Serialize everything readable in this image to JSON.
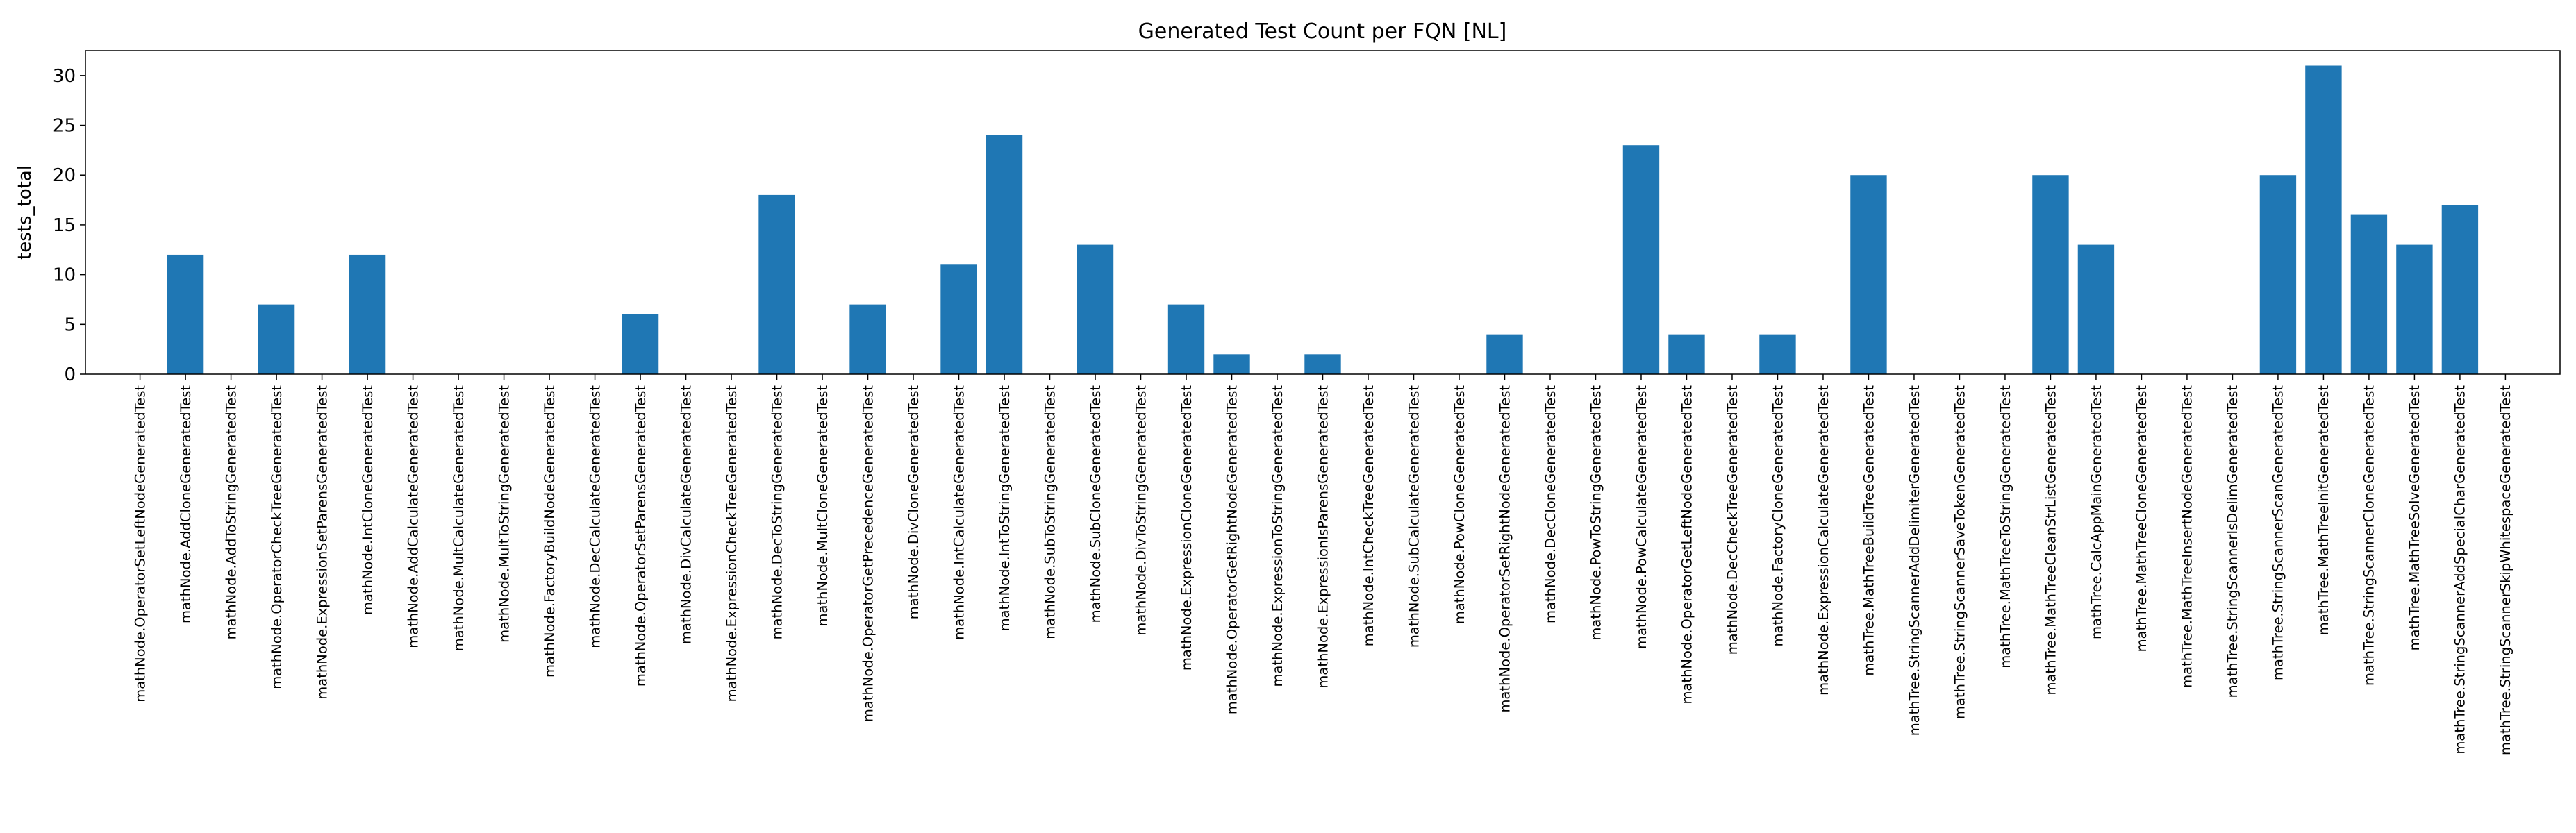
{
  "chart_data": {
    "type": "bar",
    "title": "Generated Test Count per FQN [NL]",
    "xlabel": "",
    "ylabel": "tests_total",
    "ylim": [
      0,
      32.5
    ],
    "yticks": [
      0,
      5,
      10,
      15,
      20,
      25,
      30
    ],
    "grid": false,
    "bar_color": "#1f77b4",
    "categories": [
      "mathNode.OperatorSetLeftNodeGeneratedTest",
      "mathNode.AddCloneGeneratedTest",
      "mathNode.AddToStringGeneratedTest",
      "mathNode.OperatorCheckTreeGeneratedTest",
      "mathNode.ExpressionSetParensGeneratedTest",
      "mathNode.IntCloneGeneratedTest",
      "mathNode.AddCalculateGeneratedTest",
      "mathNode.MultCalculateGeneratedTest",
      "mathNode.MultToStringGeneratedTest",
      "mathNode.FactoryBuildNodeGeneratedTest",
      "mathNode.DecCalculateGeneratedTest",
      "mathNode.OperatorSetParensGeneratedTest",
      "mathNode.DivCalculateGeneratedTest",
      "mathNode.ExpressionCheckTreeGeneratedTest",
      "mathNode.DecToStringGeneratedTest",
      "mathNode.MultCloneGeneratedTest",
      "mathNode.OperatorGetPrecedenceGeneratedTest",
      "mathNode.DivCloneGeneratedTest",
      "mathNode.IntCalculateGeneratedTest",
      "mathNode.IntToStringGeneratedTest",
      "mathNode.SubToStringGeneratedTest",
      "mathNode.SubCloneGeneratedTest",
      "mathNode.DivToStringGeneratedTest",
      "mathNode.ExpressionCloneGeneratedTest",
      "mathNode.OperatorGetRightNodeGeneratedTest",
      "mathNode.ExpressionToStringGeneratedTest",
      "mathNode.ExpressionIsParensGeneratedTest",
      "mathNode.IntCheckTreeGeneratedTest",
      "mathNode.SubCalculateGeneratedTest",
      "mathNode.PowCloneGeneratedTest",
      "mathNode.OperatorSetRightNodeGeneratedTest",
      "mathNode.DecCloneGeneratedTest",
      "mathNode.PowToStringGeneratedTest",
      "mathNode.PowCalculateGeneratedTest",
      "mathNode.OperatorGetLeftNodeGeneratedTest",
      "mathNode.DecCheckTreeGeneratedTest",
      "mathNode.FactoryCloneGeneratedTest",
      "mathNode.ExpressionCalculateGeneratedTest",
      "mathTree.MathTreeBuildTreeGeneratedTest",
      "mathTree.StringScannerAddDelimiterGeneratedTest",
      "mathTree.StringScannerSaveTokenGeneratedTest",
      "mathTree.MathTreeToStringGeneratedTest",
      "mathTree.MathTreeCleanStrListGeneratedTest",
      "mathTree.CalcAppMainGeneratedTest",
      "mathTree.MathTreeCloneGeneratedTest",
      "mathTree.MathTreeInsertNodeGeneratedTest",
      "mathTree.StringScannerIsDelimGeneratedTest",
      "mathTree.StringScannerScanGeneratedTest",
      "mathTree.MathTreeInitGeneratedTest",
      "mathTree.StringScannerCloneGeneratedTest",
      "mathTree.MathTreeSolveGeneratedTest",
      "mathTree.StringScannerAddSpecialCharGeneratedTest",
      "mathTree.StringScannerSkipWhitespaceGeneratedTest"
    ],
    "values": [
      0,
      12,
      0,
      7,
      0,
      12,
      0,
      0,
      0,
      0,
      0,
      6,
      0,
      0,
      18,
      0,
      7,
      0,
      11,
      24,
      0,
      13,
      0,
      7,
      2,
      0,
      2,
      0,
      0,
      0,
      4,
      0,
      0,
      23,
      4,
      0,
      4,
      0,
      20,
      0,
      0,
      0,
      20,
      13,
      0,
      0,
      0,
      20,
      31,
      16,
      13,
      17,
      0
    ]
  }
}
